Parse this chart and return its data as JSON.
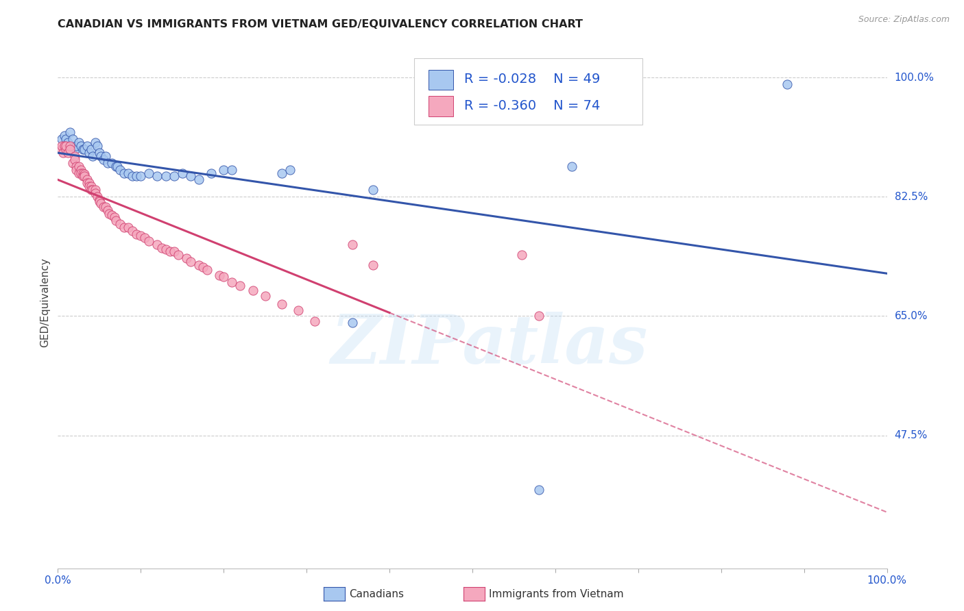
{
  "title": "CANADIAN VS IMMIGRANTS FROM VIETNAM GED/EQUIVALENCY CORRELATION CHART",
  "source": "Source: ZipAtlas.com",
  "ylabel": "GED/Equivalency",
  "legend_r1": "-0.028",
  "legend_n1": "49",
  "legend_r2": "-0.360",
  "legend_n2": "74",
  "color_canadian": "#a8c8f0",
  "color_vietnam": "#f5a8be",
  "color_line_canadian": "#3355aa",
  "color_line_vietnam": "#d04070",
  "color_axis_labels": "#2255cc",
  "color_title": "#222222",
  "watermark_text": "ZIPatlas",
  "canadians_x": [
    0.005,
    0.008,
    0.01,
    0.012,
    0.015,
    0.018,
    0.02,
    0.022,
    0.025,
    0.028,
    0.03,
    0.032,
    0.035,
    0.038,
    0.04,
    0.042,
    0.045,
    0.048,
    0.05,
    0.052,
    0.055,
    0.058,
    0.06,
    0.065,
    0.07,
    0.072,
    0.075,
    0.08,
    0.085,
    0.09,
    0.095,
    0.1,
    0.11,
    0.12,
    0.13,
    0.14,
    0.15,
    0.16,
    0.17,
    0.185,
    0.2,
    0.21,
    0.27,
    0.28,
    0.355,
    0.38,
    0.58,
    0.62,
    0.88
  ],
  "canadians_y": [
    0.91,
    0.915,
    0.91,
    0.905,
    0.92,
    0.91,
    0.895,
    0.9,
    0.905,
    0.9,
    0.895,
    0.895,
    0.9,
    0.89,
    0.895,
    0.885,
    0.905,
    0.9,
    0.89,
    0.885,
    0.88,
    0.885,
    0.875,
    0.875,
    0.87,
    0.87,
    0.865,
    0.86,
    0.86,
    0.855,
    0.855,
    0.855,
    0.86,
    0.855,
    0.855,
    0.855,
    0.86,
    0.855,
    0.85,
    0.86,
    0.865,
    0.865,
    0.86,
    0.865,
    0.64,
    0.835,
    0.395,
    0.87,
    0.99
  ],
  "vietnam_x": [
    0.004,
    0.005,
    0.006,
    0.008,
    0.01,
    0.01,
    0.012,
    0.015,
    0.015,
    0.018,
    0.02,
    0.02,
    0.022,
    0.022,
    0.025,
    0.025,
    0.028,
    0.028,
    0.03,
    0.03,
    0.032,
    0.032,
    0.035,
    0.035,
    0.038,
    0.038,
    0.04,
    0.04,
    0.042,
    0.045,
    0.045,
    0.048,
    0.05,
    0.05,
    0.052,
    0.055,
    0.058,
    0.06,
    0.062,
    0.065,
    0.068,
    0.07,
    0.075,
    0.08,
    0.085,
    0.09,
    0.095,
    0.1,
    0.105,
    0.11,
    0.12,
    0.125,
    0.13,
    0.135,
    0.14,
    0.145,
    0.155,
    0.16,
    0.17,
    0.175,
    0.18,
    0.195,
    0.2,
    0.21,
    0.22,
    0.235,
    0.25,
    0.27,
    0.29,
    0.31,
    0.355,
    0.38,
    0.56,
    0.58
  ],
  "vietnam_y": [
    0.895,
    0.9,
    0.89,
    0.9,
    0.895,
    0.9,
    0.89,
    0.9,
    0.895,
    0.875,
    0.885,
    0.88,
    0.87,
    0.865,
    0.87,
    0.86,
    0.865,
    0.86,
    0.86,
    0.855,
    0.858,
    0.855,
    0.85,
    0.845,
    0.845,
    0.84,
    0.84,
    0.835,
    0.835,
    0.835,
    0.83,
    0.825,
    0.82,
    0.818,
    0.815,
    0.81,
    0.81,
    0.805,
    0.8,
    0.798,
    0.795,
    0.79,
    0.785,
    0.78,
    0.78,
    0.775,
    0.77,
    0.768,
    0.765,
    0.76,
    0.755,
    0.75,
    0.748,
    0.745,
    0.745,
    0.74,
    0.735,
    0.73,
    0.725,
    0.722,
    0.718,
    0.71,
    0.708,
    0.7,
    0.695,
    0.688,
    0.68,
    0.668,
    0.658,
    0.642,
    0.755,
    0.725,
    0.74,
    0.65
  ],
  "xmin": 0.0,
  "xmax": 1.0,
  "ymin": 0.28,
  "ymax": 1.06,
  "ytick_values": [
    1.0,
    0.825,
    0.65,
    0.475
  ],
  "ytick_labels": [
    "100.0%",
    "82.5%",
    "65.0%",
    "47.5%"
  ],
  "xtick_values": [
    0.0,
    0.1,
    0.2,
    0.3,
    0.4,
    0.5,
    0.6,
    0.7,
    0.8,
    0.9,
    1.0
  ],
  "xtick_labels": [
    "0.0%",
    "",
    "",
    "",
    "",
    "",
    "",
    "",
    "",
    "",
    "100.0%"
  ],
  "solid_line_end_x": 0.4,
  "background_color": "#ffffff",
  "grid_color": "#cccccc"
}
